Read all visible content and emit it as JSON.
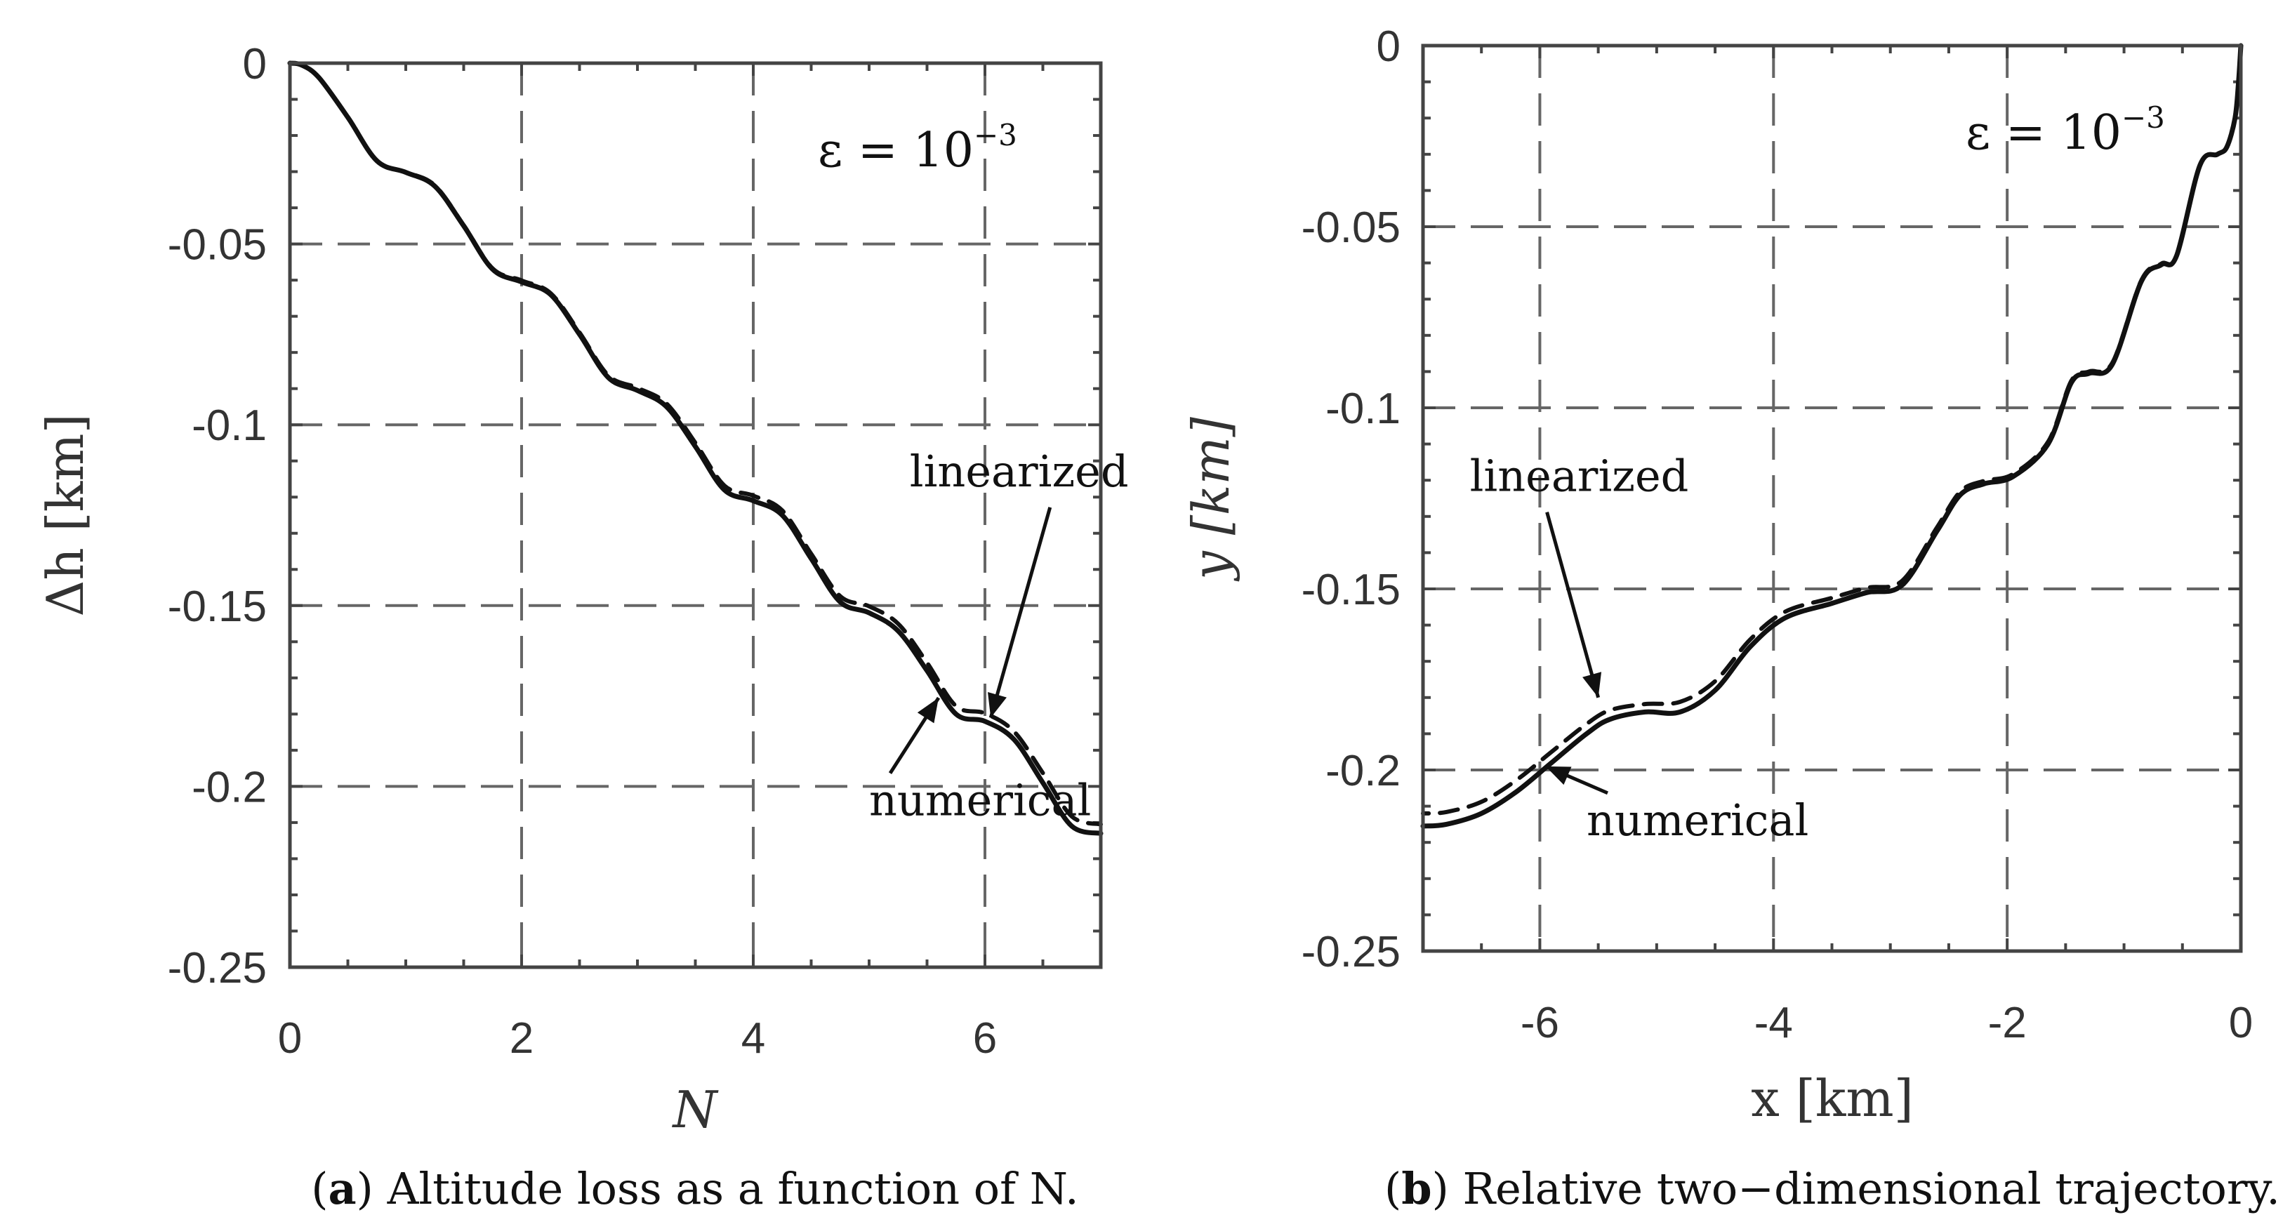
{
  "chart_data": [
    {
      "id": "a",
      "type": "line",
      "xlabel": "N",
      "ylabel": "Δh [km]",
      "xlim": [
        0,
        7
      ],
      "ylim": [
        -0.25,
        0
      ],
      "xticks": [
        0,
        2,
        4,
        6
      ],
      "xtick_labels": [
        "0",
        "2",
        "4",
        "6"
      ],
      "yticks": [
        0,
        -0.05,
        -0.1,
        -0.15,
        -0.2,
        -0.25
      ],
      "ytick_labels": [
        "0",
        "-0.05",
        "-0.1",
        "-0.15",
        "-0.2",
        "-0.25"
      ],
      "grid": true,
      "epsilon_label": "ε = 10",
      "epsilon_exp": "−3",
      "caption_letter": "a",
      "caption_text": "Altitude loss as a function of N.",
      "series": [
        {
          "name": "numerical",
          "style": "solid",
          "x": [
            0,
            0.1,
            0.25,
            0.5,
            0.75,
            1.0,
            1.25,
            1.5,
            1.75,
            2.0,
            2.25,
            2.5,
            2.75,
            3.0,
            3.25,
            3.5,
            3.75,
            4.0,
            4.25,
            4.5,
            4.75,
            5.0,
            5.25,
            5.5,
            5.75,
            6.0,
            6.25,
            6.5,
            6.75,
            7.0
          ],
          "y": [
            0,
            -0.0005,
            -0.004,
            -0.015,
            -0.027,
            -0.0302,
            -0.034,
            -0.045,
            -0.057,
            -0.0605,
            -0.064,
            -0.075,
            -0.087,
            -0.0905,
            -0.095,
            -0.106,
            -0.118,
            -0.121,
            -0.125,
            -0.137,
            -0.149,
            -0.152,
            -0.157,
            -0.168,
            -0.18,
            -0.182,
            -0.187,
            -0.199,
            -0.211,
            -0.213
          ]
        },
        {
          "name": "linearized",
          "style": "dashed",
          "x": [
            0,
            0.1,
            0.25,
            0.5,
            0.75,
            1.0,
            1.25,
            1.5,
            1.75,
            2.0,
            2.25,
            2.5,
            2.75,
            3.0,
            3.25,
            3.5,
            3.75,
            4.0,
            4.25,
            4.5,
            4.75,
            5.0,
            5.25,
            5.5,
            5.75,
            6.0,
            6.25,
            6.5,
            6.75,
            7.0
          ],
          "y": [
            0,
            -0.0005,
            -0.004,
            -0.015,
            -0.027,
            -0.0301,
            -0.0338,
            -0.0448,
            -0.0568,
            -0.0601,
            -0.0636,
            -0.0745,
            -0.0864,
            -0.0898,
            -0.0941,
            -0.105,
            -0.1168,
            -0.1196,
            -0.1237,
            -0.1357,
            -0.1474,
            -0.1502,
            -0.155,
            -0.1658,
            -0.1778,
            -0.1798,
            -0.1848,
            -0.1963,
            -0.2083,
            -0.2105
          ]
        }
      ],
      "annotations": [
        {
          "text": "linearized",
          "x": 5.35,
          "y": -0.117,
          "arrow_to": [
            6.05,
            -0.181
          ]
        },
        {
          "text": "numerical",
          "x": 5.0,
          "y": -0.208,
          "arrow_to": [
            5.6,
            -0.1755
          ]
        }
      ]
    },
    {
      "id": "b",
      "type": "line",
      "xlabel": "x [km]",
      "ylabel": "y [km]",
      "xlim": [
        -7,
        0
      ],
      "ylim": [
        -0.25,
        0
      ],
      "xticks": [
        -6,
        -4,
        -2,
        0
      ],
      "xtick_labels": [
        "-6",
        "-4",
        "-2",
        "0"
      ],
      "yticks": [
        0,
        -0.05,
        -0.1,
        -0.15,
        -0.2,
        -0.25
      ],
      "ytick_labels": [
        "0",
        "-0.05",
        "-0.1",
        "-0.15",
        "-0.2",
        "-0.25"
      ],
      "grid": true,
      "epsilon_label": "ε = 10",
      "epsilon_exp": "−3",
      "caption_letter": "b",
      "caption_text": "Relative two−dimensional trajectory.",
      "series": [
        {
          "name": "numerical",
          "style": "solid",
          "x": [
            0,
            -0.02,
            -0.05,
            -0.12,
            -0.2,
            -0.35,
            -0.55,
            -0.68,
            -0.85,
            -1.1,
            -1.3,
            -1.45,
            -1.65,
            -1.95,
            -2.2,
            -2.4,
            -2.6,
            -2.9,
            -3.2,
            -3.5,
            -3.9,
            -4.2,
            -4.5,
            -4.8,
            -5.1,
            -5.4,
            -5.6,
            -5.9,
            -6.2,
            -6.5,
            -6.8,
            -7.0
          ],
          "y": [
            0,
            -0.01,
            -0.02,
            -0.028,
            -0.03,
            -0.033,
            -0.058,
            -0.0605,
            -0.065,
            -0.088,
            -0.0905,
            -0.093,
            -0.11,
            -0.119,
            -0.121,
            -0.124,
            -0.134,
            -0.149,
            -0.151,
            -0.154,
            -0.158,
            -0.166,
            -0.178,
            -0.184,
            -0.184,
            -0.186,
            -0.19,
            -0.198,
            -0.206,
            -0.212,
            -0.215,
            -0.2155
          ]
        },
        {
          "name": "linearized",
          "style": "dashed",
          "x": [
            0,
            -0.02,
            -0.05,
            -0.12,
            -0.2,
            -0.35,
            -0.55,
            -0.68,
            -0.85,
            -1.1,
            -1.3,
            -1.45,
            -1.65,
            -1.95,
            -2.2,
            -2.4,
            -2.6,
            -2.9,
            -3.2,
            -3.5,
            -3.9,
            -4.2,
            -4.5,
            -4.8,
            -5.1,
            -5.4,
            -5.6,
            -5.9,
            -6.2,
            -6.5,
            -6.8,
            -7.0
          ],
          "y": [
            0,
            -0.01,
            -0.02,
            -0.028,
            -0.03,
            -0.033,
            -0.058,
            -0.0602,
            -0.0647,
            -0.0876,
            -0.09,
            -0.0925,
            -0.1094,
            -0.1183,
            -0.1202,
            -0.1231,
            -0.133,
            -0.1478,
            -0.1497,
            -0.1525,
            -0.1563,
            -0.164,
            -0.1755,
            -0.1812,
            -0.1818,
            -0.1835,
            -0.1873,
            -0.195,
            -0.2028,
            -0.2088,
            -0.2116,
            -0.212
          ]
        }
      ],
      "annotations": [
        {
          "text": "linearized",
          "x": -6.6,
          "y": -0.123,
          "arrow_to": [
            -5.5,
            -0.18
          ]
        },
        {
          "text": "numerical",
          "x": -5.6,
          "y": -0.218,
          "arrow_to": [
            -5.95,
            -0.199
          ]
        }
      ]
    }
  ]
}
